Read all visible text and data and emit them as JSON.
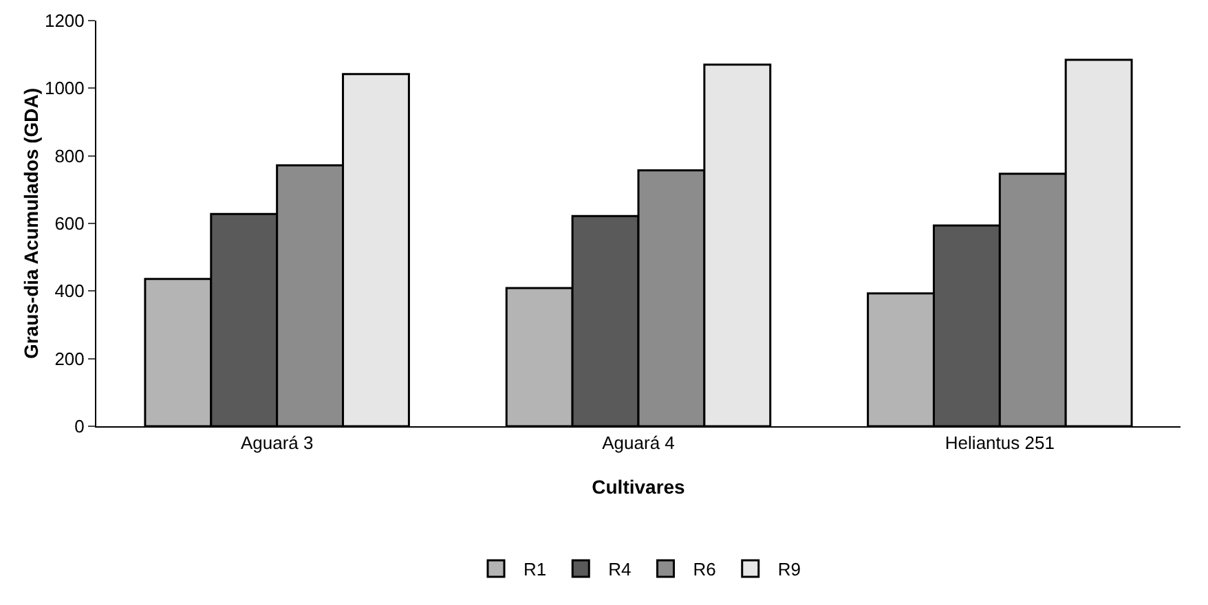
{
  "chart_data": {
    "type": "bar",
    "xlabel": "Cultivares",
    "ylabel": "Graus-dia Acumulados (GDA)",
    "categories": [
      "Aguará 3",
      "Aguará 4",
      "Heliantus 251"
    ],
    "series": [
      {
        "name": "R1",
        "color": "#b4b4b4",
        "values": [
          436,
          409,
          393
        ]
      },
      {
        "name": "R4",
        "color": "#5a5a5a",
        "values": [
          628,
          622,
          594
        ]
      },
      {
        "name": "R6",
        "color": "#8c8c8c",
        "values": [
          772,
          757,
          747
        ]
      },
      {
        "name": "R9",
        "color": "#e6e6e6",
        "values": [
          1042,
          1070,
          1084
        ]
      }
    ],
    "ylim": [
      0,
      1200
    ],
    "yticks": [
      0,
      200,
      400,
      600,
      800,
      1000,
      1200
    ],
    "grid": false,
    "legend": "bottom"
  }
}
